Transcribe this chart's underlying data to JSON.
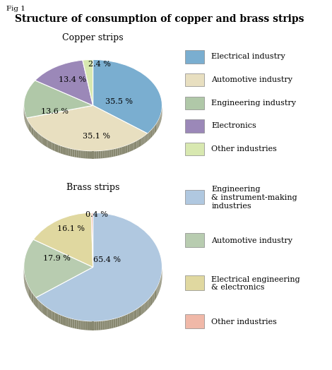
{
  "title": "Structure of consumption of copper and brass strips",
  "fig_label": "Fig 1",
  "copper_title": "Copper strips",
  "brass_title": "Brass strips",
  "copper_values": [
    35.5,
    35.1,
    13.6,
    13.4,
    2.4
  ],
  "copper_labels": [
    "35.5 %",
    "35.1 %",
    "13.6 %",
    "13.4 %",
    "2.4 %"
  ],
  "copper_colors": [
    "#7aaed0",
    "#e8dfc0",
    "#b0c8a8",
    "#9b88b8",
    "#d8e8b0"
  ],
  "copper_legend": [
    "Electrical industry",
    "Automotive industry",
    "Engineering industry",
    "Electronics",
    "Other industries"
  ],
  "brass_values": [
    65.4,
    17.9,
    16.1,
    0.4
  ],
  "brass_labels": [
    "65.4 %",
    "17.9 %",
    "16.1 %",
    "0.4 %"
  ],
  "brass_colors": [
    "#b0c8e0",
    "#b8ccb0",
    "#e0d8a0",
    "#f0b8a8"
  ],
  "brass_legend": [
    "Engineering\n& instrument-making\nindustries",
    "Automotive industry",
    "Electrical engineering\n& electronics",
    "Other industries"
  ],
  "background_color": "#ffffff",
  "title_fontsize": 10,
  "subtitle_fontsize": 9,
  "label_fontsize": 8,
  "legend_fontsize": 8
}
